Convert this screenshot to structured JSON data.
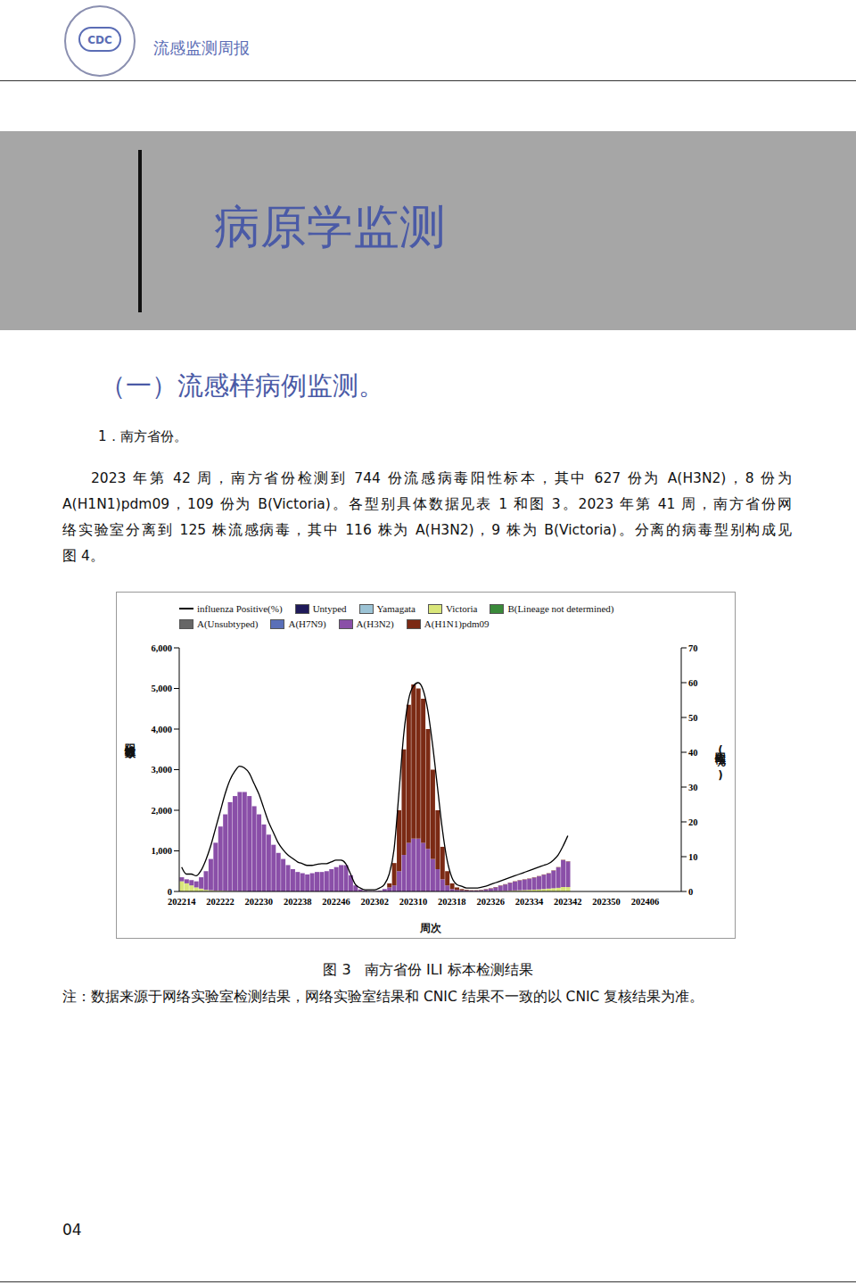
{
  "header": {
    "logo_text": "CDC",
    "title": "流感监测周报"
  },
  "banner_title": "病原学监测",
  "section_title": "（一）流感样病例监测。",
  "subsection_title": "1．南方省份。",
  "paragraph_lines": [
    "2023 年第 42 周，南方省份检测到 744 份流感病毒阳性标本，其中 627 份为 A(H3N2)，8 份为",
    "A(H1N1)pdm09，109 份为 B(Victoria)。各型别具体数据见表 1 和图 3。2023 年第 41 周，南方省份网",
    "络实验室分离到 125 株流感病毒，其中 116 株为 A(H3N2)，9 株为 B(Victoria)。分离的病毒型别构成见",
    "图 4。"
  ],
  "chart_data": {
    "type": "bar",
    "stacked": true,
    "grid": false,
    "legend": "top",
    "x_label": "周次",
    "y_label": "阳性标本数",
    "y2_label": "阳性率(%)",
    "categories": [
      "202214",
      null,
      null,
      null,
      null,
      null,
      null,
      null,
      "202222",
      null,
      null,
      null,
      null,
      null,
      null,
      null,
      "202230",
      null,
      null,
      null,
      null,
      null,
      null,
      null,
      "202238",
      null,
      null,
      null,
      null,
      null,
      null,
      null,
      "202246",
      null,
      null,
      null,
      null,
      null,
      null,
      null,
      "202302",
      null,
      null,
      null,
      null,
      null,
      null,
      null,
      "202310",
      null,
      null,
      null,
      null,
      null,
      null,
      null,
      "202318",
      null,
      null,
      null,
      null,
      null,
      null,
      null,
      "202326",
      null,
      null,
      null,
      null,
      null,
      null,
      null,
      "202334",
      null,
      null,
      null,
      null,
      null,
      null,
      null,
      "202342",
      null,
      null,
      null,
      null,
      null,
      null,
      null,
      "202350",
      null,
      null,
      null,
      null,
      null,
      null,
      null,
      "202406",
      null,
      null,
      null,
      null,
      null,
      null,
      null
    ],
    "ylim": [
      0,
      6000
    ],
    "yticks": [
      0,
      {
        "value": 1000,
        "label": "1,000"
      },
      {
        "value": 2000,
        "label": "2,000"
      },
      {
        "value": 3000,
        "label": "3,000"
      },
      {
        "value": 4000,
        "label": "4,000"
      },
      {
        "value": 5000,
        "label": "5,000"
      },
      {
        "value": 6000,
        "label": "6,000"
      }
    ],
    "y2lim": [
      0,
      70
    ],
    "y2ticks": [
      0,
      10,
      20,
      30,
      40,
      50,
      60,
      70
    ],
    "series": [
      {
        "name": "influenza Positive(%)",
        "type": "line",
        "axis": "y2",
        "color": "#000000",
        "values": [
          7,
          5,
          5,
          4.5,
          6,
          9,
          13,
          18,
          23,
          28,
          32,
          34.5,
          36,
          35.5,
          34,
          31,
          28,
          24,
          20,
          17,
          14,
          12,
          10.5,
          9.5,
          8.5,
          8,
          7.5,
          7.5,
          7.8,
          8,
          8,
          8.5,
          9,
          9,
          8,
          5,
          2,
          1,
          0.5,
          0.5,
          0.5,
          1,
          2,
          5,
          12,
          28,
          45,
          55,
          59,
          60,
          58,
          52,
          42,
          30,
          18,
          9,
          4,
          2,
          1.5,
          1,
          1,
          1,
          1.2,
          1.5,
          2,
          2.5,
          3,
          3.5,
          4,
          4.5,
          5,
          5.5,
          6,
          6.5,
          7,
          7.5,
          8,
          9,
          10.5,
          13,
          16,
          null,
          null,
          null,
          null,
          null,
          null,
          null,
          null,
          null,
          null,
          null,
          null,
          null,
          null,
          null,
          null,
          null,
          null,
          null,
          null,
          null,
          null,
          null
        ]
      },
      {
        "name": "Untyped",
        "type": "bar",
        "color": "#1f1a5a",
        "values": [
          0,
          0,
          0,
          0,
          0,
          0,
          0,
          0,
          0,
          0,
          0,
          0,
          0,
          0,
          0,
          0,
          0,
          0,
          0,
          0,
          0,
          0,
          0,
          0,
          0,
          0,
          0,
          0,
          0,
          0,
          0,
          0,
          0,
          0,
          0,
          0,
          0,
          0,
          0,
          0,
          0,
          0,
          0,
          0,
          0,
          0,
          0,
          0,
          0,
          0,
          0,
          0,
          0,
          0,
          0,
          0,
          0,
          0,
          0,
          0,
          0,
          0,
          0,
          0,
          0,
          0,
          0,
          0,
          0,
          0,
          0,
          0,
          0,
          0,
          0,
          0,
          0,
          0,
          0,
          0,
          0,
          null,
          null,
          null,
          null,
          null,
          null,
          null,
          null,
          null,
          null,
          null,
          null,
          null,
          null,
          null,
          null,
          null,
          null,
          null,
          null,
          null,
          null,
          null
        ]
      },
      {
        "name": "Yamagata",
        "type": "bar",
        "color": "#9cc3d5",
        "values": [
          0,
          0,
          0,
          0,
          0,
          0,
          0,
          0,
          0,
          0,
          0,
          0,
          0,
          0,
          0,
          0,
          0,
          0,
          0,
          0,
          0,
          0,
          0,
          0,
          0,
          0,
          0,
          0,
          0,
          0,
          0,
          0,
          0,
          0,
          0,
          0,
          0,
          0,
          0,
          0,
          0,
          0,
          0,
          0,
          0,
          0,
          0,
          0,
          0,
          0,
          0,
          0,
          0,
          0,
          0,
          0,
          0,
          0,
          0,
          0,
          0,
          0,
          0,
          0,
          0,
          0,
          0,
          0,
          0,
          0,
          0,
          0,
          0,
          0,
          0,
          0,
          0,
          0,
          0,
          0,
          0,
          null,
          null,
          null,
          null,
          null,
          null,
          null,
          null,
          null,
          null,
          null,
          null,
          null,
          null,
          null,
          null,
          null,
          null,
          null,
          null,
          null,
          null,
          null
        ]
      },
      {
        "name": "Victoria",
        "type": "bar",
        "color": "#d9e67a",
        "values": [
          250,
          200,
          150,
          100,
          70,
          40,
          30,
          20,
          20,
          15,
          10,
          10,
          5,
          5,
          0,
          0,
          0,
          0,
          0,
          0,
          0,
          0,
          0,
          0,
          0,
          0,
          0,
          0,
          0,
          0,
          0,
          0,
          0,
          0,
          0,
          0,
          0,
          0,
          0,
          0,
          0,
          0,
          0,
          0,
          0,
          0,
          0,
          0,
          0,
          0,
          0,
          0,
          0,
          0,
          0,
          0,
          0,
          0,
          0,
          0,
          0,
          0,
          5,
          5,
          5,
          10,
          10,
          15,
          20,
          25,
          30,
          35,
          40,
          45,
          50,
          60,
          70,
          80,
          90,
          110,
          109,
          null,
          null,
          null,
          null,
          null,
          null,
          null,
          null,
          null,
          null,
          null,
          null,
          null,
          null,
          null,
          null,
          null,
          null,
          null,
          null,
          null,
          null,
          null
        ]
      },
      {
        "name": "B(Lineage not determined)",
        "type": "bar",
        "color": "#3a8a3a",
        "values": [
          0,
          0,
          0,
          0,
          0,
          0,
          0,
          0,
          0,
          0,
          0,
          0,
          0,
          0,
          0,
          0,
          0,
          0,
          0,
          0,
          0,
          0,
          0,
          0,
          0,
          0,
          0,
          0,
          0,
          0,
          0,
          0,
          0,
          0,
          0,
          0,
          0,
          0,
          0,
          0,
          0,
          0,
          0,
          0,
          0,
          0,
          0,
          0,
          0,
          0,
          0,
          0,
          0,
          0,
          0,
          0,
          0,
          0,
          0,
          0,
          0,
          0,
          0,
          0,
          0,
          0,
          0,
          0,
          0,
          0,
          0,
          0,
          0,
          0,
          0,
          0,
          0,
          0,
          0,
          0,
          0,
          null,
          null,
          null,
          null,
          null,
          null,
          null,
          null,
          null,
          null,
          null,
          null,
          null,
          null,
          null,
          null,
          null,
          null,
          null,
          null,
          null,
          null,
          null
        ]
      },
      {
        "name": "A(Unsubtyped)",
        "type": "bar",
        "color": "#666666",
        "values": [
          0,
          0,
          0,
          0,
          0,
          0,
          0,
          0,
          0,
          0,
          0,
          0,
          0,
          0,
          0,
          0,
          0,
          0,
          0,
          0,
          0,
          0,
          0,
          0,
          0,
          0,
          0,
          0,
          0,
          0,
          0,
          0,
          0,
          0,
          0,
          0,
          0,
          0,
          0,
          0,
          0,
          0,
          0,
          0,
          0,
          0,
          0,
          0,
          0,
          0,
          0,
          0,
          0,
          0,
          0,
          0,
          0,
          0,
          0,
          0,
          0,
          0,
          0,
          0,
          0,
          0,
          0,
          0,
          0,
          0,
          0,
          0,
          0,
          0,
          0,
          0,
          0,
          0,
          0,
          0,
          0,
          null,
          null,
          null,
          null,
          null,
          null,
          null,
          null,
          null,
          null,
          null,
          null,
          null,
          null,
          null,
          null,
          null,
          null,
          null,
          null,
          null,
          null,
          null
        ]
      },
      {
        "name": "A(H7N9)",
        "type": "bar",
        "color": "#5a6fb8",
        "values": [
          0,
          0,
          0,
          0,
          0,
          0,
          0,
          0,
          0,
          0,
          0,
          0,
          0,
          0,
          0,
          0,
          0,
          0,
          0,
          0,
          0,
          0,
          0,
          0,
          0,
          0,
          0,
          0,
          0,
          0,
          0,
          0,
          0,
          0,
          0,
          0,
          0,
          0,
          0,
          0,
          0,
          0,
          0,
          0,
          0,
          0,
          0,
          0,
          0,
          0,
          0,
          0,
          0,
          0,
          0,
          0,
          0,
          0,
          0,
          0,
          0,
          0,
          0,
          0,
          0,
          0,
          0,
          0,
          0,
          0,
          0,
          0,
          0,
          0,
          0,
          0,
          0,
          0,
          0,
          0,
          0,
          null,
          null,
          null,
          null,
          null,
          null,
          null,
          null,
          null,
          null,
          null,
          null,
          null,
          null,
          null,
          null,
          null,
          null,
          null,
          null,
          null,
          null,
          null
        ]
      },
      {
        "name": "A(H3N2)",
        "type": "bar",
        "color": "#8a4fa8",
        "values": [
          100,
          100,
          130,
          150,
          280,
          460,
          770,
          1180,
          1580,
          1885,
          2190,
          2340,
          2445,
          2445,
          2350,
          2100,
          1900,
          1650,
          1400,
          1150,
          950,
          800,
          650,
          550,
          480,
          450,
          420,
          450,
          480,
          480,
          500,
          550,
          600,
          650,
          650,
          400,
          150,
          50,
          20,
          10,
          10,
          20,
          60,
          100,
          150,
          500,
          900,
          1200,
          1300,
          1300,
          1200,
          1050,
          800,
          550,
          300,
          150,
          60,
          40,
          30,
          25,
          20,
          22,
          27,
          47,
          67,
          92,
          132,
          157,
          192,
          217,
          242,
          257,
          272,
          297,
          322,
          352,
          372,
          432,
          502,
          662,
          627,
          null,
          null,
          null,
          null,
          null,
          null,
          null,
          null,
          null,
          null,
          null,
          null,
          null,
          null,
          null,
          null,
          null,
          null,
          null,
          null,
          null,
          null,
          null
        ]
      },
      {
        "name": "A(H1N1)pdm09",
        "type": "bar",
        "color": "#7b2a14",
        "values": [
          0,
          0,
          0,
          0,
          0,
          0,
          0,
          0,
          0,
          0,
          0,
          0,
          0,
          0,
          0,
          0,
          0,
          0,
          0,
          0,
          0,
          0,
          0,
          0,
          0,
          0,
          0,
          0,
          0,
          0,
          0,
          0,
          0,
          0,
          0,
          0,
          0,
          0,
          0,
          0,
          0,
          0,
          0,
          100,
          550,
          1500,
          2600,
          3400,
          3800,
          3700,
          3550,
          2950,
          2200,
          1450,
          800,
          350,
          140,
          60,
          30,
          15,
          10,
          8,
          8,
          8,
          8,
          8,
          8,
          8,
          8,
          8,
          8,
          8,
          8,
          8,
          8,
          8,
          8,
          8,
          8,
          8,
          8,
          null,
          null,
          null,
          null,
          null,
          null,
          null,
          null,
          null,
          null,
          null,
          null,
          null,
          null,
          null,
          null,
          null,
          null,
          null,
          null,
          null,
          null,
          null
        ]
      }
    ]
  },
  "caption": "图 3   南方省份 ILI 标本检测结果",
  "note": "注：数据来源于网络实验室检测结果，网络实验室结果和 CNIC 结果不一致的以 CNIC 复核结果为准。",
  "page_number": "04"
}
